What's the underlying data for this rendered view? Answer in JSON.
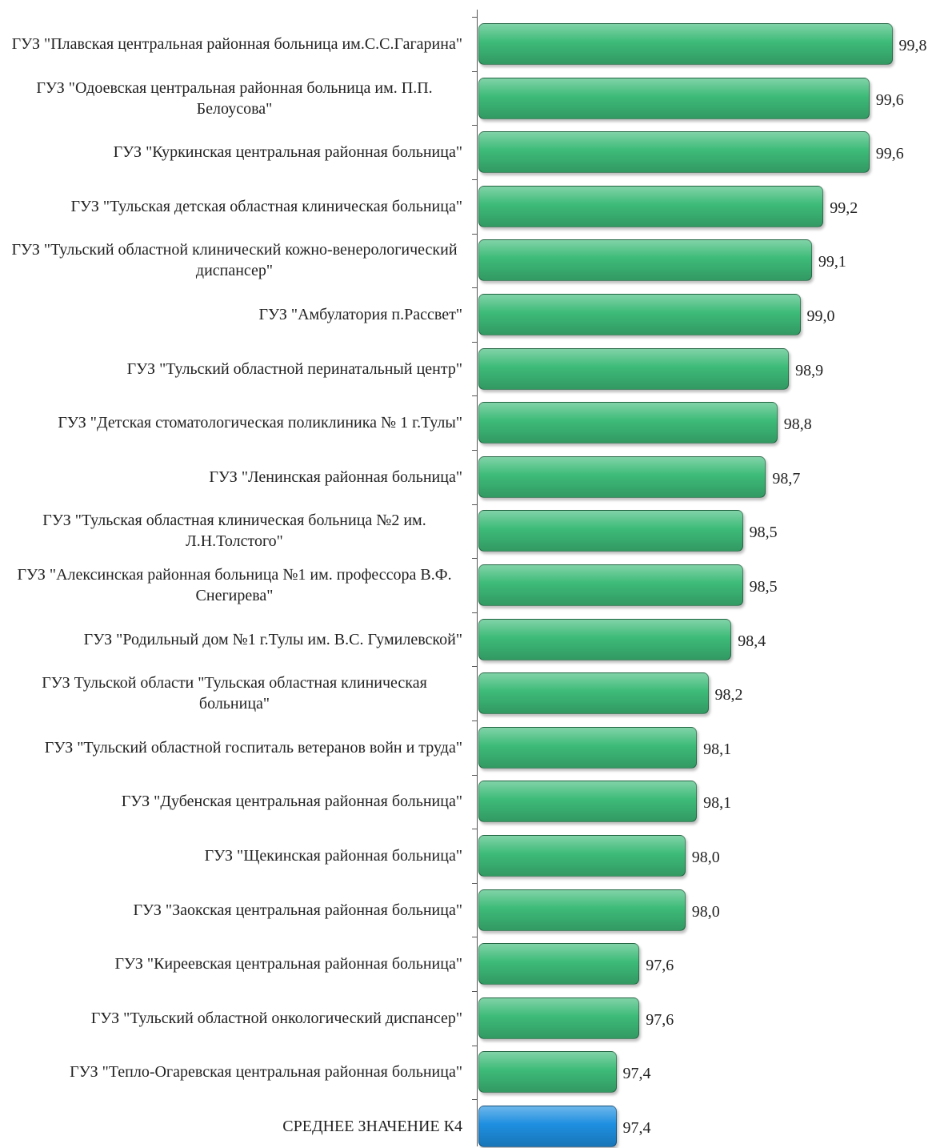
{
  "chart_data": {
    "type": "barh",
    "categories": [
      "ГУЗ \"Плавская центральная районная больница им.С.С.Гагарина\"",
      "ГУЗ \"Одоевская центральная районная больница им. П.П. Белоусова\"",
      "ГУЗ \"Куркинская центральная районная больница\"",
      "ГУЗ \"Тульская детская областная клиническая больница\"",
      "ГУЗ \"Тульский областной клинический кожно-венерологический диспансер\"",
      "ГУЗ \"Амбулатория п.Рассвет\"",
      "ГУЗ \"Тульский областной перинатальный центр\"",
      "ГУЗ \"Детская стоматологическая поликлиника № 1 г.Тулы\"",
      "ГУЗ \"Ленинская районная больница\"",
      "ГУЗ \"Тульская областная клиническая больница №2 им. Л.Н.Толстого\"",
      "ГУЗ \"Алексинская районная больница №1 им. профессора В.Ф. Снегирева\"",
      "ГУЗ \"Родильный дом №1 г.Тулы им. В.С. Гумилевской\"",
      "ГУЗ Тульской области \"Тульская областная клиническая больница\"",
      "ГУЗ \"Тульский областной госпиталь ветеранов войн и труда\"",
      "ГУЗ \"Дубенская центральная районная больница\"",
      "ГУЗ \"Щекинская районная больница\"",
      "ГУЗ \"Заокская центральная районная больница\"",
      "ГУЗ \"Киреевская центральная районная больница\"",
      "ГУЗ \"Тульский областной онкологический диспансер\"",
      "ГУЗ \"Тепло-Огаревская центральная районная больница\"",
      "СРЕДНЕЕ ЗНАЧЕНИЕ К4"
    ],
    "values": [
      99.8,
      99.6,
      99.6,
      99.2,
      99.1,
      99.0,
      98.9,
      98.8,
      98.7,
      98.5,
      98.5,
      98.4,
      98.2,
      98.1,
      98.1,
      98.0,
      98.0,
      97.6,
      97.6,
      97.4,
      97.4
    ],
    "value_labels": [
      "99,8",
      "99,6",
      "99,6",
      "99,2",
      "99,1",
      "99,0",
      "98,9",
      "98,8",
      "98,7",
      "98,5",
      "98,5",
      "98,4",
      "98,2",
      "98,1",
      "98,1",
      "98,0",
      "98,0",
      "97,6",
      "97,6",
      "97,4",
      "97,4"
    ],
    "colors": [
      "#3dbb78",
      "#3dbb78",
      "#3dbb78",
      "#3dbb78",
      "#3dbb78",
      "#3dbb78",
      "#3dbb78",
      "#3dbb78",
      "#3dbb78",
      "#3dbb78",
      "#3dbb78",
      "#3dbb78",
      "#3dbb78",
      "#3dbb78",
      "#3dbb78",
      "#3dbb78",
      "#3dbb78",
      "#3dbb78",
      "#3dbb78",
      "#3dbb78",
      "#1e8fe0"
    ],
    "xlim": [
      96.2,
      100.2
    ]
  }
}
